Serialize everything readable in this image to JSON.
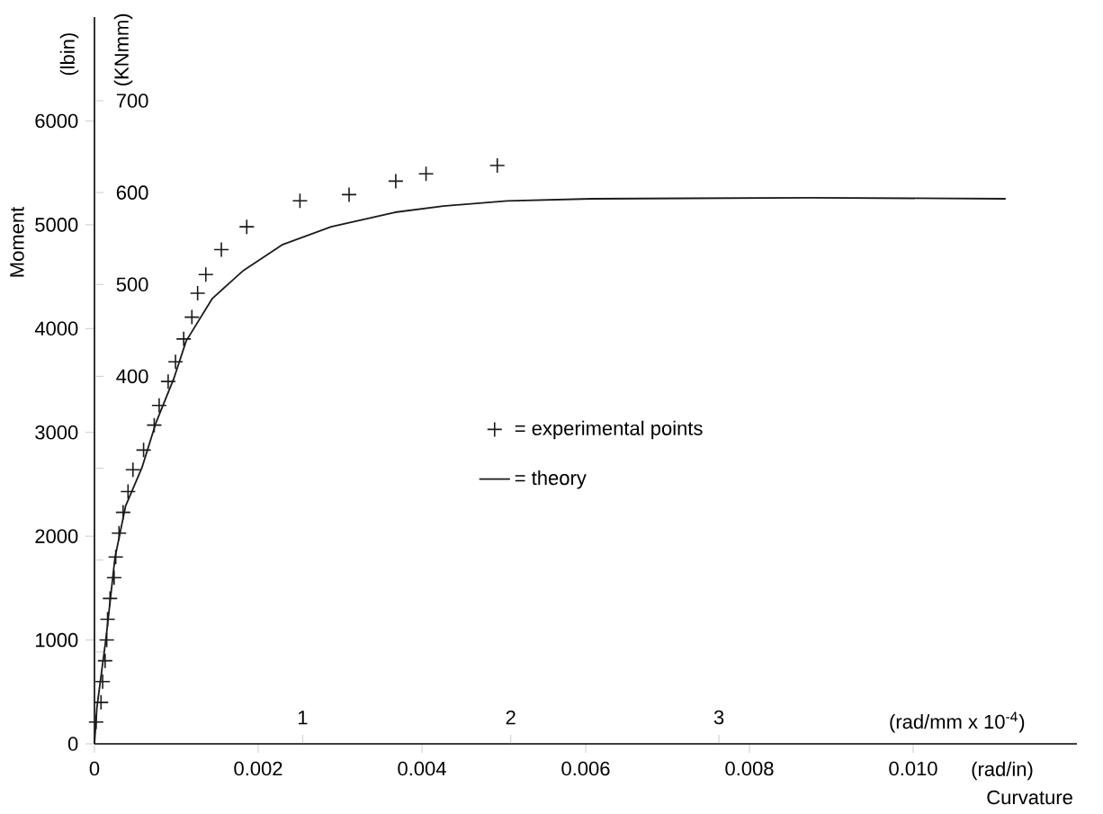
{
  "chart_data": {
    "type": "line",
    "xlabel": "Curvature",
    "ylabel": "Moment",
    "y2label": "(KNmm)",
    "x2label": "(rad/mm x 10$^{-4}$)",
    "annotations": [
      "(lbin)",
      "(rad/in)"
    ],
    "xlim": [
      0,
      0.012
    ],
    "xticks": [
      0,
      0.002,
      0.004,
      0.006,
      0.008,
      {
        "value": 0.01,
        "label": "0.010"
      }
    ],
    "ylim": [
      0,
      7000
    ],
    "yticks": [
      0,
      1000,
      2000,
      3000,
      4000,
      5000,
      6000
    ],
    "y2lim": [
      0,
      791
    ],
    "y2ticks": [
      {
        "value": 100,
        "label": null
      },
      {
        "value": 200,
        "label": null
      },
      {
        "value": 300,
        "label": null
      },
      400,
      500,
      600,
      700
    ],
    "x2lim": [
      0,
      4.72
    ],
    "x2ticks": [
      1,
      2,
      3
    ],
    "legend": "center",
    "series": [
      {
        "name": "= experimental points",
        "type": "scatter",
        "marker": "cross",
        "color": "#1a1a1a",
        "x": [
          2e-05,
          8e-05,
          0.0001,
          0.00013,
          0.00015,
          0.00016,
          0.00019,
          0.00024,
          0.00026,
          0.0003,
          0.00035,
          0.00041,
          0.00047,
          0.0006,
          0.00073,
          0.00079,
          0.0009,
          0.00099,
          0.00109,
          0.00119,
          0.00126,
          0.00136,
          0.00155,
          0.00186,
          0.00251,
          0.00311,
          0.00368,
          0.00405,
          0.00492
        ],
        "values": [
          210,
          400,
          600,
          800,
          1000,
          1200,
          1400,
          1600,
          1800,
          2030,
          2230,
          2430,
          2640,
          2830,
          3070,
          3260,
          3490,
          3680,
          3900,
          4110,
          4340,
          4520,
          4760,
          4980,
          5230,
          5290,
          5420,
          5490,
          5570
        ]
      },
      {
        "name": "= theory",
        "type": "line",
        "marker": "none",
        "color": "#1a1a1a",
        "x": [
          0,
          3e-05,
          0.00014,
          0.00025,
          0.00038,
          0.00058,
          0.00075,
          0.00097,
          0.00112,
          0.00144,
          0.00182,
          0.0023,
          0.00289,
          0.00367,
          0.00426,
          0.00504,
          0.00607,
          0.00874,
          0.01113
        ],
        "values": [
          0,
          350,
          1010,
          1790,
          2290,
          2660,
          3090,
          3520,
          3880,
          4290,
          4560,
          4810,
          4980,
          5120,
          5180,
          5230,
          5250,
          5260,
          5250
        ]
      }
    ]
  }
}
